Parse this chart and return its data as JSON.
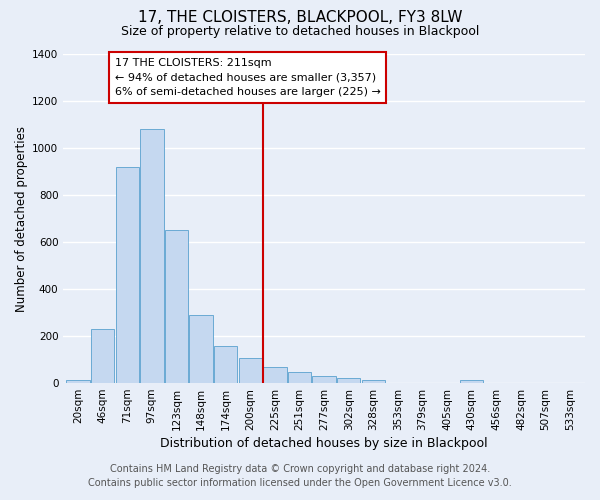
{
  "title": "17, THE CLOISTERS, BLACKPOOL, FY3 8LW",
  "subtitle": "Size of property relative to detached houses in Blackpool",
  "xlabel": "Distribution of detached houses by size in Blackpool",
  "ylabel": "Number of detached properties",
  "bar_labels": [
    "20sqm",
    "46sqm",
    "71sqm",
    "97sqm",
    "123sqm",
    "148sqm",
    "174sqm",
    "200sqm",
    "225sqm",
    "251sqm",
    "277sqm",
    "302sqm",
    "328sqm",
    "353sqm",
    "379sqm",
    "405sqm",
    "430sqm",
    "456sqm",
    "482sqm",
    "507sqm",
    "533sqm"
  ],
  "bar_values": [
    15,
    228,
    920,
    1080,
    650,
    290,
    158,
    108,
    70,
    45,
    28,
    20,
    15,
    0,
    0,
    0,
    12,
    0,
    0,
    0,
    0
  ],
  "bar_color": "#c5d8f0",
  "bar_edge_color": "#6aaad4",
  "vline_color": "#cc0000",
  "annotation_title": "17 THE CLOISTERS: 211sqm",
  "annotation_line1": "← 94% of detached houses are smaller (3,357)",
  "annotation_line2": "6% of semi-detached houses are larger (225) →",
  "annotation_box_color": "#cc0000",
  "ylim": [
    0,
    1400
  ],
  "yticks": [
    0,
    200,
    400,
    600,
    800,
    1000,
    1200,
    1400
  ],
  "footer_line1": "Contains HM Land Registry data © Crown copyright and database right 2024.",
  "footer_line2": "Contains public sector information licensed under the Open Government Licence v3.0.",
  "bg_color": "#e8eef8",
  "plot_bg_color": "#e8eef8",
  "grid_color": "#ffffff",
  "title_fontsize": 11,
  "subtitle_fontsize": 9,
  "xlabel_fontsize": 9,
  "ylabel_fontsize": 8.5,
  "tick_fontsize": 7.5,
  "footer_fontsize": 7,
  "annotation_fontsize": 8
}
